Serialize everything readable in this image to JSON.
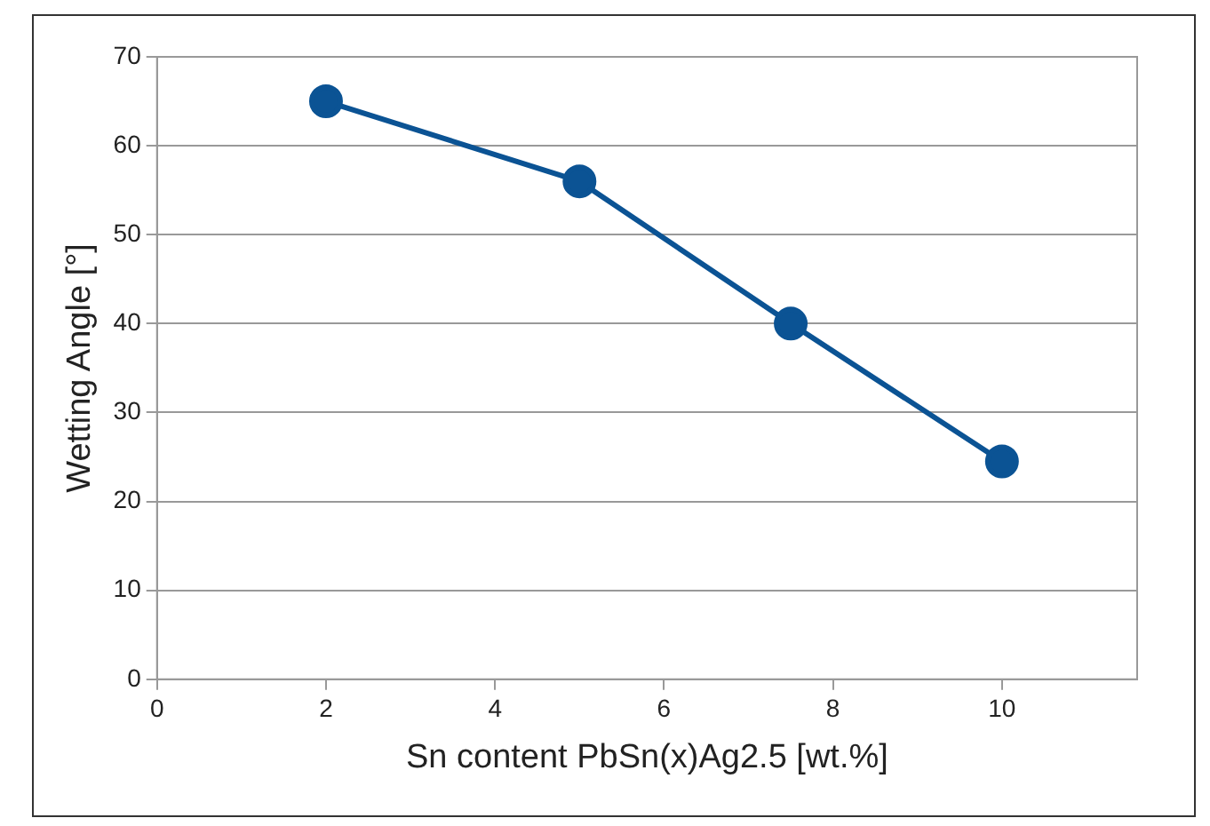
{
  "chart_data": {
    "type": "line",
    "xlabel": "Sn content PbSn(x)Ag2.5 [wt.%]",
    "ylabel": "Wetting Angle [°]",
    "x": [
      2,
      5,
      7.5,
      10
    ],
    "series": [
      {
        "color": "#0b5394",
        "values": [
          65,
          56,
          40,
          24.5
        ]
      }
    ],
    "xlim": [
      0,
      11.6
    ],
    "xticks": [
      0,
      2,
      4,
      6,
      8,
      10
    ],
    "ylim": [
      0,
      70
    ],
    "yticks": [
      0,
      10,
      20,
      30,
      40,
      50,
      60,
      70
    ],
    "grid": "y",
    "legend": false,
    "marker": "circle",
    "line_style": "solid"
  }
}
